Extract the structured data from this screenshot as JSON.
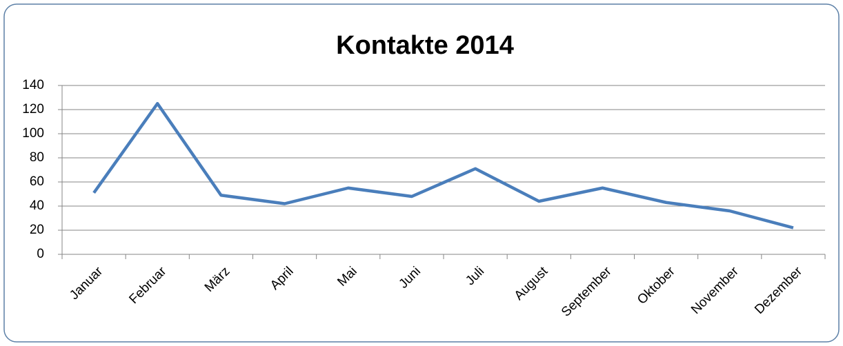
{
  "chart_data": {
    "type": "line",
    "title": "Kontakte 2014",
    "categories": [
      "Januar",
      "Februar",
      "März",
      "April",
      "Mai",
      "Juni",
      "Juli",
      "August",
      "September",
      "Oktober",
      "November",
      "Dezember"
    ],
    "series": [
      {
        "name": "Kontakte",
        "color": "#4a7ebb",
        "values": [
          51,
          125,
          49,
          42,
          55,
          48,
          71,
          44,
          55,
          43,
          36,
          22
        ]
      }
    ],
    "ylim": [
      0,
      140
    ],
    "yticks": [
      0,
      20,
      40,
      60,
      80,
      100,
      120,
      140
    ],
    "grid": true,
    "legend": false
  }
}
